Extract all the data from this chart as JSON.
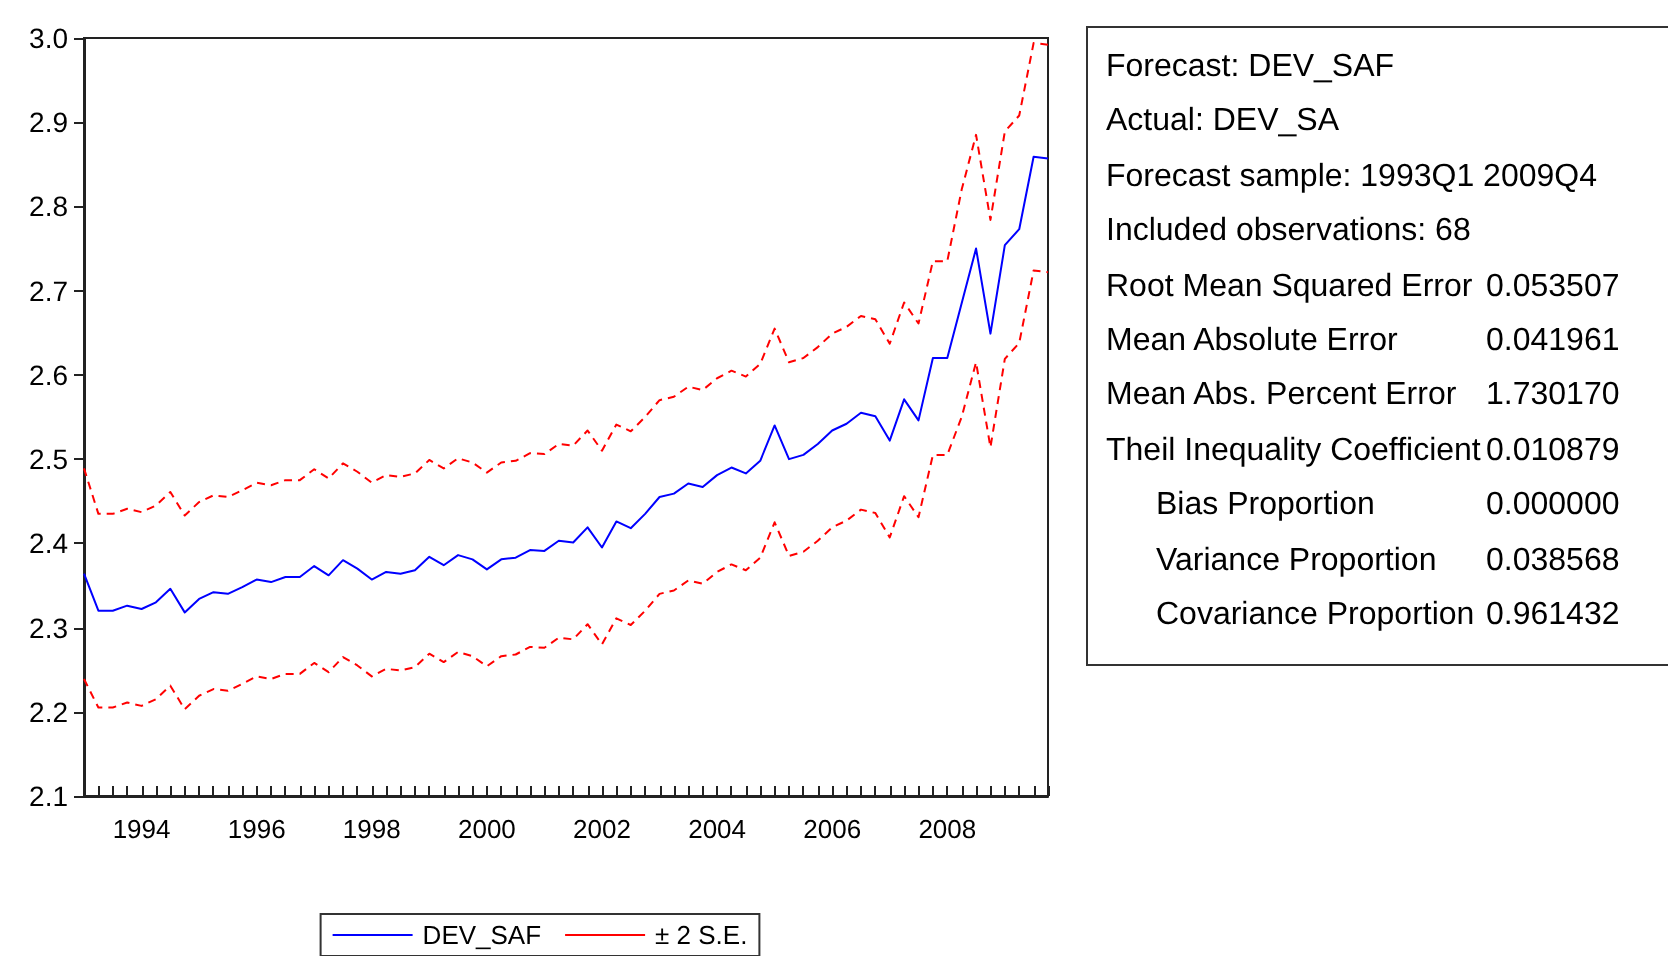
{
  "chart_data": [
    {
      "type": "line",
      "categories": [
        null,
        null,
        null,
        null,
        "1994",
        null,
        null,
        null,
        null,
        null,
        null,
        null,
        "1996",
        null,
        null,
        null,
        null,
        null,
        null,
        null,
        "1998",
        null,
        null,
        null,
        null,
        null,
        null,
        null,
        "2000",
        null,
        null,
        null,
        null,
        null,
        null,
        null,
        "2002",
        null,
        null,
        null,
        null,
        null,
        null,
        null,
        "2004",
        null,
        null,
        null,
        null,
        null,
        null,
        null,
        "2006",
        null,
        null,
        null,
        null,
        null,
        null,
        null,
        "2008",
        null,
        null,
        null,
        null,
        null,
        null,
        null
      ],
      "series": [
        {
          "name": "DEV_SAF",
          "color": "#0000ff",
          "line_style": "solid",
          "values": [
            2.364,
            2.32,
            2.32,
            2.326,
            2.322,
            2.33,
            2.346,
            2.318,
            2.334,
            2.342,
            2.34,
            2.348,
            2.357,
            2.354,
            2.36,
            2.36,
            2.373,
            2.362,
            2.38,
            2.37,
            2.357,
            2.366,
            2.364,
            2.368,
            2.384,
            2.374,
            2.386,
            2.381,
            2.369,
            2.381,
            2.383,
            2.392,
            2.391,
            2.403,
            2.401,
            2.419,
            2.395,
            2.426,
            2.418,
            2.435,
            2.455,
            2.459,
            2.471,
            2.467,
            2.481,
            2.49,
            2.483,
            2.498,
            2.54,
            2.5,
            2.505,
            2.518,
            2.534,
            2.542,
            2.555,
            2.551,
            2.522,
            2.571,
            2.546,
            2.62,
            2.62,
            2.685,
            2.75,
            2.649,
            2.754,
            2.773,
            2.859,
            2.857
          ]
        },
        {
          "name": "± 2 S.E.",
          "color": "#ff0000",
          "line_style": "dashed",
          "values": [
            2.489,
            2.435,
            2.435,
            2.441,
            2.437,
            2.445,
            2.461,
            2.433,
            2.449,
            2.457,
            2.455,
            2.463,
            2.472,
            2.469,
            2.475,
            2.475,
            2.488,
            2.477,
            2.495,
            2.485,
            2.472,
            2.481,
            2.479,
            2.483,
            2.499,
            2.489,
            2.501,
            2.496,
            2.484,
            2.496,
            2.498,
            2.507,
            2.506,
            2.518,
            2.516,
            2.534,
            2.51,
            2.541,
            2.533,
            2.55,
            2.57,
            2.574,
            2.586,
            2.582,
            2.596,
            2.605,
            2.598,
            2.613,
            2.655,
            2.615,
            2.62,
            2.633,
            2.649,
            2.657,
            2.67,
            2.666,
            2.637,
            2.686,
            2.661,
            2.735,
            2.735,
            2.82,
            2.885,
            2.784,
            2.889,
            2.908,
            2.994,
            2.992
          ]
        },
        {
          "color": "#ff0000",
          "line_style": "dashed",
          "values": [
            2.239,
            2.205,
            2.205,
            2.211,
            2.207,
            2.215,
            2.231,
            2.203,
            2.219,
            2.227,
            2.225,
            2.233,
            2.242,
            2.239,
            2.245,
            2.245,
            2.258,
            2.247,
            2.265,
            2.255,
            2.242,
            2.251,
            2.249,
            2.253,
            2.269,
            2.259,
            2.271,
            2.266,
            2.254,
            2.266,
            2.268,
            2.277,
            2.276,
            2.288,
            2.286,
            2.304,
            2.28,
            2.311,
            2.303,
            2.32,
            2.34,
            2.344,
            2.356,
            2.352,
            2.366,
            2.375,
            2.368,
            2.383,
            2.425,
            2.385,
            2.39,
            2.403,
            2.419,
            2.427,
            2.44,
            2.436,
            2.407,
            2.456,
            2.431,
            2.505,
            2.505,
            2.55,
            2.615,
            2.514,
            2.619,
            2.638,
            2.724,
            2.722
          ]
        }
      ],
      "ylim": [
        2.1,
        3.0
      ],
      "yticks": [
        2.1,
        2.2,
        2.3,
        2.4,
        2.5,
        2.6,
        2.7,
        2.8,
        2.9,
        {
          "value": 3.0,
          "label": "3.0"
        }
      ],
      "grid": false,
      "legend": "bottom",
      "marker": "none"
    },
    {
      "type": "other",
      "annotations": [
        "Forecast: DEV_SAF",
        "Actual: DEV_SA",
        "Forecast sample: 1993Q1 2009Q4",
        "Included observations: 68"
      ],
      "categories": [
        "Root Mean Squared Error",
        "Mean Absolute Error",
        "Mean Abs. Percent Error",
        "Theil Inequality Coefficient",
        "Bias Proportion",
        "Variance Proportion",
        "Covariance Proportion"
      ],
      "value_labels": [
        "0.053507",
        "0.041961",
        "1.730170",
        "0.010879",
        "0.000000",
        "0.038568",
        "0.961432"
      ]
    }
  ]
}
